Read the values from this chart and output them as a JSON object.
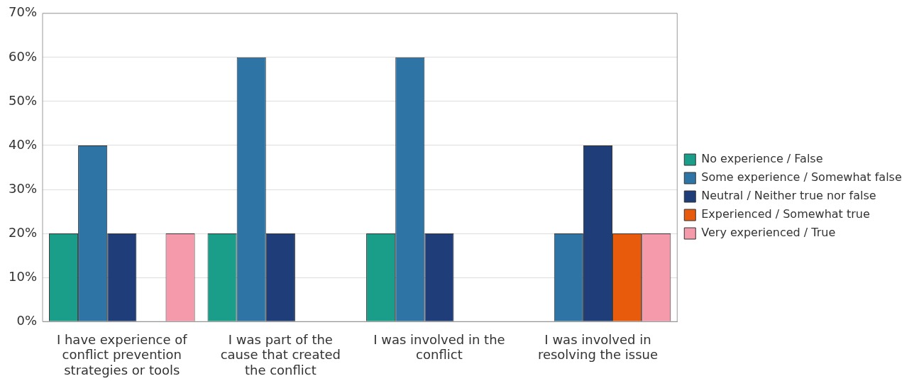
{
  "chart_data": {
    "type": "bar",
    "categories": [
      "I have experience of conflict prevention strategies or tools",
      "I was part of the cause that created the conflict",
      "I was involved in the conflict",
      "I was involved in resolving the issue"
    ],
    "series": [
      {
        "name": "No experience / False",
        "color": "#1a9e8a",
        "values": [
          20,
          20,
          20,
          0
        ]
      },
      {
        "name": "Some experience / Somewhat false",
        "color": "#2e75a6",
        "values": [
          40,
          60,
          60,
          20
        ]
      },
      {
        "name": "Neutral / Neither true nor false",
        "color": "#1f3d78",
        "values": [
          20,
          20,
          20,
          40
        ]
      },
      {
        "name": "Experienced / Somewhat true",
        "color": "#e85a0c",
        "values": [
          0,
          0,
          0,
          20
        ]
      },
      {
        "name": "Very experienced / True",
        "color": "#f59aaa",
        "values": [
          20,
          0,
          0,
          20
        ]
      }
    ],
    "ylim": [
      0,
      70
    ],
    "yticks": [
      {
        "value": 0,
        "label": "0%"
      },
      {
        "value": 10,
        "label": "10%"
      },
      {
        "value": 20,
        "label": "20%"
      },
      {
        "value": 30,
        "label": "30%"
      },
      {
        "value": 40,
        "label": "40%"
      },
      {
        "value": 50,
        "label": "50%"
      },
      {
        "value": 60,
        "label": "60%"
      },
      {
        "value": 70,
        "label": "70%"
      }
    ],
    "grid": "y",
    "legend": "right"
  }
}
